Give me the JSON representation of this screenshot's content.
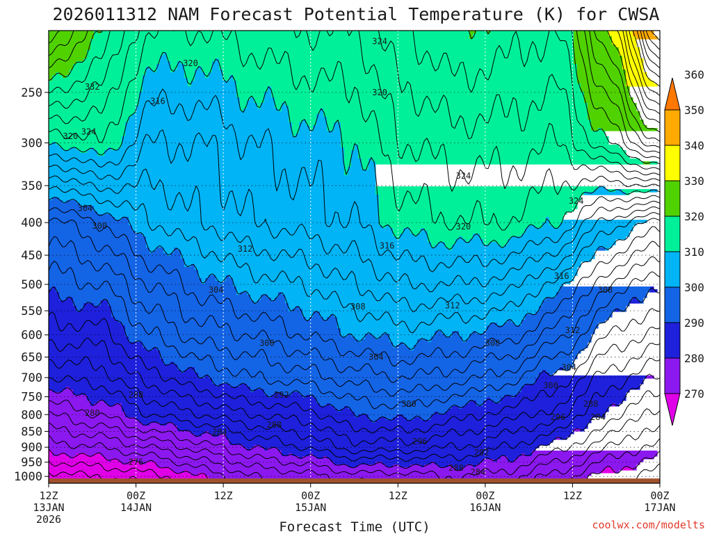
{
  "chart_data": {
    "type": "heatmap",
    "title": "2026011312 NAM Forecast Potential Temperature (K) for CWSA",
    "xlabel": "Forecast Time (UTC)",
    "credit": "coolwx.com/modelts",
    "y_axis": {
      "ticks": [
        250,
        300,
        350,
        400,
        450,
        500,
        550,
        600,
        650,
        700,
        750,
        800,
        850,
        900,
        950,
        1000
      ],
      "ylim": [
        1025,
        200
      ],
      "scale": "log-pressure"
    },
    "x_axis": {
      "ticks": [
        {
          "hour": 0,
          "lines": [
            "12Z",
            "13JAN",
            "2026"
          ]
        },
        {
          "hour": 12,
          "lines": [
            "00Z",
            "14JAN"
          ]
        },
        {
          "hour": 24,
          "lines": [
            "12Z"
          ]
        },
        {
          "hour": 36,
          "lines": [
            "00Z",
            "15JAN"
          ]
        },
        {
          "hour": 48,
          "lines": [
            "12Z"
          ]
        },
        {
          "hour": 60,
          "lines": [
            "00Z",
            "16JAN"
          ]
        },
        {
          "hour": 72,
          "lines": [
            "12Z"
          ]
        },
        {
          "hour": 84,
          "lines": [
            "00Z",
            "17JAN"
          ]
        }
      ],
      "xlim": [
        0,
        84
      ]
    },
    "grid": true,
    "colorbar": {
      "levels": [
        270,
        280,
        290,
        300,
        310,
        320,
        330,
        340,
        350,
        360
      ],
      "colors": [
        "#e000e8",
        "#8c18f0",
        "#1e20dc",
        "#1464e6",
        "#00b4f5",
        "#00f09a",
        "#50d200",
        "#ffff00",
        "#ffaa00",
        "#ff7800"
      ]
    },
    "contour_interval": 2,
    "theta_profiles": [
      {
        "p": 1000,
        "values": [
          275,
          276,
          277,
          280,
          284,
          285,
          287,
          287,
          288,
          287,
          283,
          279,
          277
        ]
      },
      {
        "p": 900,
        "values": [
          281,
          282,
          284,
          287,
          290,
          292,
          295,
          295,
          294,
          292,
          289,
          284,
          281
        ]
      },
      {
        "p": 800,
        "values": [
          286,
          288,
          292,
          294,
          296,
          297,
          300,
          301,
          299,
          297,
          295,
          289,
          285
        ]
      },
      {
        "p": 700,
        "values": [
          292,
          293,
          297,
          300,
          302,
          303,
          305,
          306,
          305,
          303,
          299,
          293,
          290
        ]
      },
      {
        "p": 600,
        "values": [
          297,
          297,
          302,
          305,
          306,
          308,
          310,
          311,
          310,
          309,
          305,
          298,
          295
        ]
      },
      {
        "p": 500,
        "values": [
          301,
          302,
          306,
          309,
          311,
          312,
          314,
          316,
          316,
          315,
          311,
          304,
          300
        ]
      },
      {
        "p": 400,
        "values": [
          305,
          308,
          312,
          314,
          316,
          317,
          318,
          321,
          322,
          322,
          320,
          313,
          309
        ]
      },
      {
        "p": 300,
        "values": [
          320,
          322,
          316,
          316,
          318,
          319,
          320,
          324,
          325,
          325,
          324,
          330,
          338
        ]
      },
      {
        "p": 200,
        "values": [
          338,
          330,
          322,
          322,
          323,
          324,
          324,
          328,
          330,
          329,
          328,
          340,
          362
        ]
      }
    ],
    "profile_hours": [
      0,
      7,
      14,
      21,
      28,
      35,
      42,
      49,
      56,
      63,
      70,
      77,
      84
    ],
    "contour_labels": [
      {
        "value": "324",
        "hour": 45.5,
        "p": 208
      },
      {
        "value": "320",
        "hour": 19.5,
        "p": 225
      },
      {
        "value": "332",
        "hour": 6,
        "p": 245
      },
      {
        "value": "316",
        "hour": 15,
        "p": 258
      },
      {
        "value": "320",
        "hour": 45.5,
        "p": 250
      },
      {
        "value": "324",
        "hour": 5.5,
        "p": 288
      },
      {
        "value": "320",
        "hour": 3,
        "p": 293
      },
      {
        "value": "324",
        "hour": 57,
        "p": 338
      },
      {
        "value": "324",
        "hour": 72.5,
        "p": 370
      },
      {
        "value": "304",
        "hour": 5,
        "p": 380
      },
      {
        "value": "300",
        "hour": 7,
        "p": 405
      },
      {
        "value": "320",
        "hour": 57,
        "p": 406
      },
      {
        "value": "312",
        "hour": 27,
        "p": 440
      },
      {
        "value": "316",
        "hour": 46.5,
        "p": 435
      },
      {
        "value": "316",
        "hour": 70.5,
        "p": 485
      },
      {
        "value": "304",
        "hour": 23,
        "p": 510
      },
      {
        "value": "308",
        "hour": 42.5,
        "p": 542
      },
      {
        "value": "312",
        "hour": 55.5,
        "p": 540
      },
      {
        "value": "308",
        "hour": 76.5,
        "p": 510
      },
      {
        "value": "312",
        "hour": 72,
        "p": 590
      },
      {
        "value": "300",
        "hour": 30,
        "p": 618
      },
      {
        "value": "308",
        "hour": 61,
        "p": 618
      },
      {
        "value": "304",
        "hour": 45,
        "p": 650
      },
      {
        "value": "304",
        "hour": 71.5,
        "p": 675
      },
      {
        "value": "300",
        "hour": 69,
        "p": 720
      },
      {
        "value": "288",
        "hour": 12,
        "p": 745
      },
      {
        "value": "292",
        "hour": 32,
        "p": 745
      },
      {
        "value": "300",
        "hour": 49.5,
        "p": 770
      },
      {
        "value": "288",
        "hour": 74.5,
        "p": 770
      },
      {
        "value": "280",
        "hour": 6,
        "p": 795
      },
      {
        "value": "296",
        "hour": 70,
        "p": 808
      },
      {
        "value": "284",
        "hour": 75.5,
        "p": 808
      },
      {
        "value": "288",
        "hour": 31,
        "p": 830
      },
      {
        "value": "284",
        "hour": 23.5,
        "p": 852
      },
      {
        "value": "296",
        "hour": 51,
        "p": 882
      },
      {
        "value": "292",
        "hour": 59.5,
        "p": 918
      },
      {
        "value": "276",
        "hour": 12,
        "p": 950
      },
      {
        "value": "288",
        "hour": 56,
        "p": 970
      },
      {
        "value": "284",
        "hour": 59,
        "p": 985
      }
    ]
  }
}
